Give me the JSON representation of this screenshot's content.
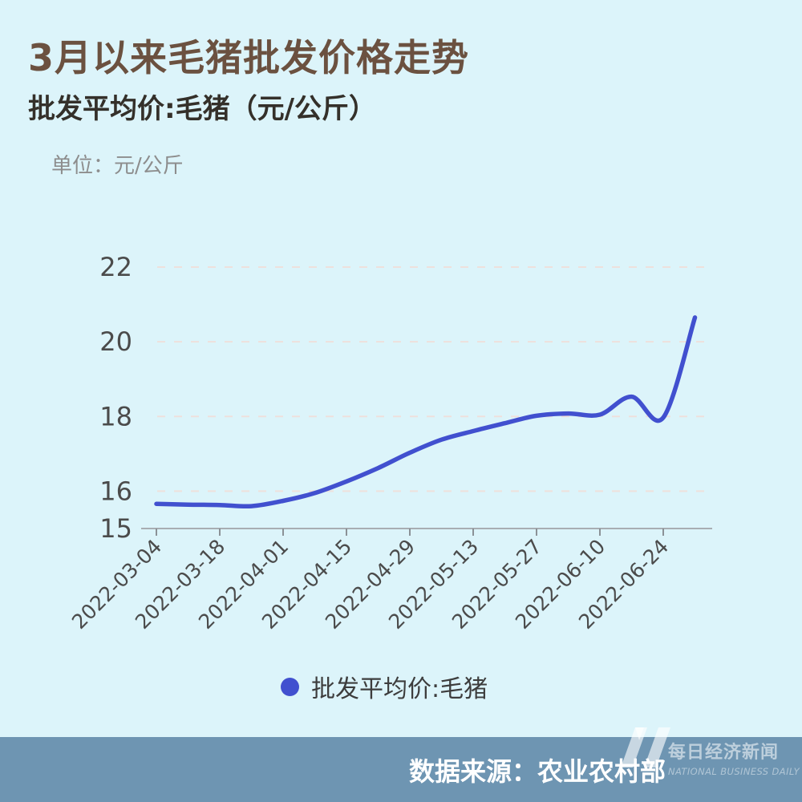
{
  "page": {
    "title": "3月以来毛猪批发价格走势",
    "subtitle": "批发平均价:毛猪（元/公斤）",
    "unit_label": "单位：元/公斤"
  },
  "legend": {
    "label": "批发平均价:毛猪"
  },
  "footer": {
    "source": "数据来源：农业农村部",
    "brand_cn": "每日经济新闻",
    "brand_en": "NATIONAL BUSINESS DAILY"
  },
  "colors": {
    "background": "#dcf4fa",
    "title": "#6b5140",
    "subtitle": "#34302a",
    "unit": "#8d8d8d",
    "axis_label": "#4b4b4b",
    "grid": "#eee0dc",
    "axis_line": "#a8adb2",
    "tick": "#8b9196",
    "line": "#4150cf",
    "legend_text": "#3d3d3d",
    "footer_bg": "#6e95b2",
    "footer_text": "#ffffff"
  },
  "chart_data": {
    "type": "line",
    "title": "3月以来毛猪批发价格走势",
    "subtitle": "批发平均价:毛猪（元/公斤）",
    "unit": "元/公斤",
    "xlabel": "",
    "ylabel": "元/公斤",
    "grid": "horizontal dashed",
    "legend_position": "bottom",
    "ylim": [
      15,
      22
    ],
    "y_ticks": [
      15,
      16,
      18,
      20,
      22
    ],
    "x_tick_labels": [
      "2022-03-04",
      "2022-03-18",
      "2022-04-01",
      "2022-04-15",
      "2022-04-29",
      "2022-05-13",
      "2022-05-27",
      "2022-06-10",
      "2022-06-24"
    ],
    "series": [
      {
        "name": "批发平均价:毛猪",
        "x": [
          "2022-03-04",
          "2022-03-11",
          "2022-03-18",
          "2022-03-25",
          "2022-04-01",
          "2022-04-08",
          "2022-04-15",
          "2022-04-22",
          "2022-04-29",
          "2022-05-06",
          "2022-05-13",
          "2022-05-20",
          "2022-05-27",
          "2022-06-03",
          "2022-06-10",
          "2022-06-17",
          "2022-06-24",
          "2022-07-01"
        ],
        "values": [
          15.66,
          15.64,
          15.63,
          15.6,
          15.74,
          15.95,
          16.26,
          16.62,
          17.03,
          17.38,
          17.61,
          17.82,
          18.02,
          18.08,
          18.05,
          18.53,
          17.97,
          20.65
        ]
      }
    ]
  }
}
